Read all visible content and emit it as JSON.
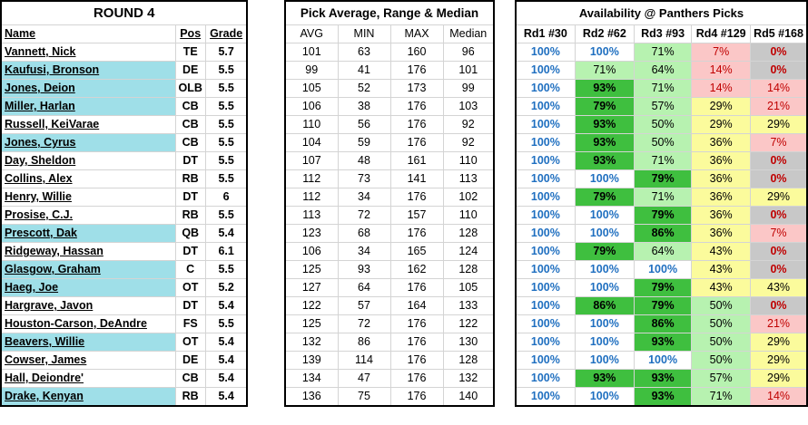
{
  "round_title": "ROUND 4",
  "player_headers": {
    "name": "Name",
    "pos": "Pos",
    "grade": "Grade"
  },
  "picks_title": "Pick Average, Range & Median",
  "picks_headers": [
    "AVG",
    "MIN",
    "MAX",
    "Median"
  ],
  "avail_title": "Availability @ Panthers Picks",
  "avail_headers": [
    "Rd1 #30",
    "Rd2 #62",
    "Rd3 #93",
    "Rd4 #129",
    "Rd5 #168"
  ],
  "rows": [
    {
      "name": "Vannett, Nick",
      "pos": "TE",
      "grade": "5.7",
      "hl": false,
      "avg": "101",
      "min": "63",
      "max": "160",
      "median": "96",
      "avail": [
        "100%",
        "100%",
        "71%",
        "7%",
        "0%"
      ],
      "cls": [
        "blue",
        "blue",
        "g-light",
        "pink",
        "grey"
      ]
    },
    {
      "name": "Kaufusi, Bronson",
      "pos": "DE",
      "grade": "5.5",
      "hl": true,
      "avg": "99",
      "min": "41",
      "max": "176",
      "median": "101",
      "avail": [
        "100%",
        "71%",
        "64%",
        "14%",
        "0%"
      ],
      "cls": [
        "blue",
        "g-light",
        "g-light",
        "pink",
        "grey"
      ]
    },
    {
      "name": "Jones, Deion",
      "pos": "OLB",
      "grade": "5.5",
      "hl": true,
      "avg": "105",
      "min": "52",
      "max": "173",
      "median": "99",
      "avail": [
        "100%",
        "93%",
        "71%",
        "14%",
        "14%"
      ],
      "cls": [
        "blue",
        "g-dark",
        "g-light",
        "pink",
        "pink"
      ]
    },
    {
      "name": "Miller, Harlan",
      "pos": "CB",
      "grade": "5.5",
      "hl": true,
      "avg": "106",
      "min": "38",
      "max": "176",
      "median": "103",
      "avail": [
        "100%",
        "79%",
        "57%",
        "29%",
        "21%"
      ],
      "cls": [
        "blue",
        "g-dark",
        "g-light",
        "yel",
        "pink"
      ]
    },
    {
      "name": "Russell, KeiVarae",
      "pos": "CB",
      "grade": "5.5",
      "hl": false,
      "avg": "110",
      "min": "56",
      "max": "176",
      "median": "92",
      "avail": [
        "100%",
        "93%",
        "50%",
        "29%",
        "29%"
      ],
      "cls": [
        "blue",
        "g-dark",
        "g-light",
        "yel",
        "yel"
      ]
    },
    {
      "name": "Jones, Cyrus",
      "pos": "CB",
      "grade": "5.5",
      "hl": true,
      "avg": "104",
      "min": "59",
      "max": "176",
      "median": "92",
      "avail": [
        "100%",
        "93%",
        "50%",
        "36%",
        "7%"
      ],
      "cls": [
        "blue",
        "g-dark",
        "g-light",
        "yel",
        "pink"
      ]
    },
    {
      "name": "Day, Sheldon",
      "pos": "DT",
      "grade": "5.5",
      "hl": false,
      "avg": "107",
      "min": "48",
      "max": "161",
      "median": "110",
      "avail": [
        "100%",
        "93%",
        "71%",
        "36%",
        "0%"
      ],
      "cls": [
        "blue",
        "g-dark",
        "g-light",
        "yel",
        "grey"
      ]
    },
    {
      "name": "Collins, Alex",
      "pos": "RB",
      "grade": "5.5",
      "hl": false,
      "avg": "112",
      "min": "73",
      "max": "141",
      "median": "113",
      "avail": [
        "100%",
        "100%",
        "79%",
        "36%",
        "0%"
      ],
      "cls": [
        "blue",
        "blue",
        "g-dark",
        "yel",
        "grey"
      ]
    },
    {
      "name": "Henry, Willie",
      "pos": "DT",
      "grade": "6",
      "hl": false,
      "avg": "112",
      "min": "34",
      "max": "176",
      "median": "102",
      "avail": [
        "100%",
        "79%",
        "71%",
        "36%",
        "29%"
      ],
      "cls": [
        "blue",
        "g-dark",
        "g-light",
        "yel",
        "yel"
      ]
    },
    {
      "name": "Prosise, C.J.",
      "pos": "RB",
      "grade": "5.5",
      "hl": false,
      "avg": "113",
      "min": "72",
      "max": "157",
      "median": "110",
      "avail": [
        "100%",
        "100%",
        "79%",
        "36%",
        "0%"
      ],
      "cls": [
        "blue",
        "blue",
        "g-dark",
        "yel",
        "grey"
      ]
    },
    {
      "name": "Prescott, Dak",
      "pos": "QB",
      "grade": "5.4",
      "hl": true,
      "avg": "123",
      "min": "68",
      "max": "176",
      "median": "128",
      "avail": [
        "100%",
        "100%",
        "86%",
        "36%",
        "7%"
      ],
      "cls": [
        "blue",
        "blue",
        "g-dark",
        "yel",
        "pink"
      ]
    },
    {
      "name": "Ridgeway, Hassan",
      "pos": "DT",
      "grade": "6.1",
      "hl": false,
      "avg": "106",
      "min": "34",
      "max": "165",
      "median": "124",
      "avail": [
        "100%",
        "79%",
        "64%",
        "43%",
        "0%"
      ],
      "cls": [
        "blue",
        "g-dark",
        "g-light",
        "yel",
        "grey"
      ]
    },
    {
      "name": "Glasgow, Graham",
      "pos": "C",
      "grade": "5.5",
      "hl": true,
      "avg": "125",
      "min": "93",
      "max": "162",
      "median": "128",
      "avail": [
        "100%",
        "100%",
        "100%",
        "43%",
        "0%"
      ],
      "cls": [
        "blue",
        "blue",
        "blue",
        "yel",
        "grey"
      ]
    },
    {
      "name": "Haeg, Joe",
      "pos": "OT",
      "grade": "5.2",
      "hl": true,
      "avg": "127",
      "min": "64",
      "max": "176",
      "median": "105",
      "avail": [
        "100%",
        "100%",
        "79%",
        "43%",
        "43%"
      ],
      "cls": [
        "blue",
        "blue",
        "g-dark",
        "yel",
        "yel"
      ]
    },
    {
      "name": "Hargrave, Javon",
      "pos": "DT",
      "grade": "5.4",
      "hl": false,
      "avg": "122",
      "min": "57",
      "max": "164",
      "median": "133",
      "avail": [
        "100%",
        "86%",
        "79%",
        "50%",
        "0%"
      ],
      "cls": [
        "blue",
        "g-dark",
        "g-dark",
        "g-light",
        "grey"
      ]
    },
    {
      "name": "Houston-Carson, DeAndre",
      "pos": "FS",
      "grade": "5.5",
      "hl": false,
      "avg": "125",
      "min": "72",
      "max": "176",
      "median": "122",
      "avail": [
        "100%",
        "100%",
        "86%",
        "50%",
        "21%"
      ],
      "cls": [
        "blue",
        "blue",
        "g-dark",
        "g-light",
        "pink"
      ]
    },
    {
      "name": "Beavers, Willie",
      "pos": "OT",
      "grade": "5.4",
      "hl": true,
      "avg": "132",
      "min": "86",
      "max": "176",
      "median": "130",
      "avail": [
        "100%",
        "100%",
        "93%",
        "50%",
        "29%"
      ],
      "cls": [
        "blue",
        "blue",
        "g-dark",
        "g-light",
        "yel"
      ]
    },
    {
      "name": "Cowser, James",
      "pos": "DE",
      "grade": "5.4",
      "hl": false,
      "avg": "139",
      "min": "114",
      "max": "176",
      "median": "128",
      "avail": [
        "100%",
        "100%",
        "100%",
        "50%",
        "29%"
      ],
      "cls": [
        "blue",
        "blue",
        "blue",
        "g-light",
        "yel"
      ]
    },
    {
      "name": "Hall, Deiondre'",
      "pos": "CB",
      "grade": "5.4",
      "hl": false,
      "avg": "134",
      "min": "47",
      "max": "176",
      "median": "132",
      "avail": [
        "100%",
        "93%",
        "93%",
        "57%",
        "29%"
      ],
      "cls": [
        "blue",
        "g-dark",
        "g-dark",
        "g-light",
        "yel"
      ]
    },
    {
      "name": "Drake, Kenyan",
      "pos": "RB",
      "grade": "5.4",
      "hl": true,
      "avg": "136",
      "min": "75",
      "max": "176",
      "median": "140",
      "avail": [
        "100%",
        "100%",
        "93%",
        "71%",
        "14%"
      ],
      "cls": [
        "blue",
        "blue",
        "g-dark",
        "g-light",
        "pink"
      ]
    }
  ]
}
